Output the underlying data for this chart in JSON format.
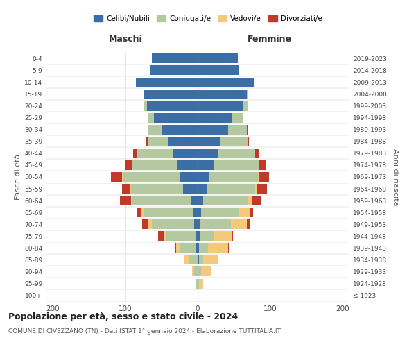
{
  "age_groups": [
    "100+",
    "95-99",
    "90-94",
    "85-89",
    "80-84",
    "75-79",
    "70-74",
    "65-69",
    "60-64",
    "55-59",
    "50-54",
    "45-49",
    "40-44",
    "35-39",
    "30-34",
    "25-29",
    "20-24",
    "15-19",
    "10-14",
    "5-9",
    "0-4"
  ],
  "birth_years": [
    "≤ 1923",
    "1924-1928",
    "1929-1933",
    "1934-1938",
    "1939-1943",
    "1944-1948",
    "1949-1953",
    "1954-1958",
    "1959-1963",
    "1964-1968",
    "1969-1973",
    "1974-1978",
    "1979-1983",
    "1984-1988",
    "1989-1993",
    "1994-1998",
    "1999-2003",
    "2004-2008",
    "2009-2013",
    "2014-2018",
    "2019-2023"
  ],
  "males_cel": [
    0,
    0,
    0,
    0,
    2,
    3,
    5,
    6,
    10,
    20,
    25,
    28,
    35,
    40,
    50,
    60,
    70,
    75,
    85,
    65,
    63
  ],
  "males_con": [
    0,
    2,
    5,
    12,
    22,
    40,
    58,
    68,
    80,
    72,
    78,
    62,
    48,
    28,
    18,
    8,
    4,
    0,
    0,
    0,
    0
  ],
  "males_ved": [
    0,
    1,
    3,
    6,
    6,
    4,
    6,
    4,
    2,
    1,
    2,
    1,
    0,
    0,
    0,
    0,
    0,
    0,
    0,
    0,
    0
  ],
  "males_div": [
    0,
    0,
    0,
    0,
    2,
    8,
    8,
    6,
    15,
    12,
    15,
    10,
    6,
    4,
    1,
    1,
    0,
    0,
    0,
    0,
    0
  ],
  "females_nub": [
    0,
    0,
    1,
    2,
    2,
    3,
    4,
    5,
    8,
    12,
    15,
    22,
    28,
    32,
    42,
    48,
    62,
    68,
    78,
    58,
    56
  ],
  "females_con": [
    0,
    2,
    4,
    6,
    12,
    20,
    42,
    52,
    62,
    68,
    68,
    62,
    52,
    38,
    26,
    14,
    8,
    2,
    0,
    0,
    0
  ],
  "females_ved": [
    0,
    6,
    14,
    20,
    28,
    24,
    22,
    16,
    6,
    2,
    1,
    0,
    0,
    0,
    0,
    0,
    0,
    0,
    0,
    0,
    0
  ],
  "females_div": [
    0,
    0,
    0,
    1,
    2,
    2,
    4,
    4,
    12,
    14,
    15,
    10,
    4,
    1,
    1,
    1,
    0,
    0,
    0,
    0,
    0
  ],
  "color_cel": "#3a6ea5",
  "color_con": "#b5c9a0",
  "color_ved": "#f5c97a",
  "color_div": "#c0392b",
  "xlim": 210,
  "bg_color": "#ffffff",
  "title": "Popolazione per età, sesso e stato civile - 2024",
  "subtitle": "COMUNE DI CIVEZZANO (TN) - Dati ISTAT 1° gennaio 2024 - Elaborazione TUTTITALIA.IT",
  "label_maschi": "Maschi",
  "label_femmine": "Femmine",
  "label_fasce": "Fasce di età",
  "label_anni": "Anni di nascita",
  "legend_labels": [
    "Celibi/Nubili",
    "Coniugati/e",
    "Vedovi/e",
    "Divorziati/e"
  ]
}
